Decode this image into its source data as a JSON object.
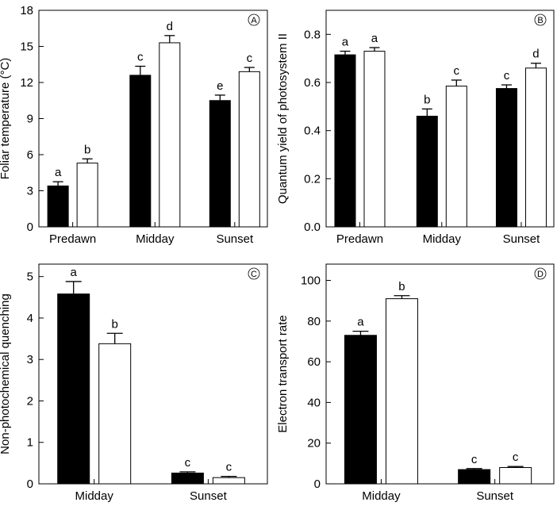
{
  "chart_data": [
    {
      "type": "bar",
      "panel": "A",
      "ylabel": "Foliar temperature (°C)",
      "xlabel": "",
      "categories": [
        "Predawn",
        "Midday",
        "Sunset"
      ],
      "ylim": [
        0,
        18
      ],
      "yticks": [
        0,
        3,
        6,
        9,
        12,
        15,
        18
      ],
      "series": [
        {
          "name": "filled",
          "color": "#000000",
          "values": [
            3.4,
            12.6,
            10.5
          ],
          "errors": [
            0.35,
            0.75,
            0.45
          ],
          "letters": [
            "a",
            "c",
            "e"
          ]
        },
        {
          "name": "open",
          "color": "#ffffff",
          "values": [
            5.3,
            15.3,
            12.9
          ],
          "errors": [
            0.35,
            0.6,
            0.35
          ],
          "letters": [
            "b",
            "d",
            "c"
          ]
        }
      ]
    },
    {
      "type": "bar",
      "panel": "B",
      "ylabel": "Quantum yield of photosystem II",
      "xlabel": "",
      "categories": [
        "Predawn",
        "Midday",
        "Sunset"
      ],
      "ylim": [
        0,
        0.9
      ],
      "yticks": [
        0.0,
        0.2,
        0.4,
        0.6,
        0.8
      ],
      "tick_decimals": 1,
      "series": [
        {
          "name": "filled",
          "color": "#000000",
          "values": [
            0.715,
            0.46,
            0.575
          ],
          "errors": [
            0.015,
            0.03,
            0.015
          ],
          "letters": [
            "a",
            "b",
            "c"
          ]
        },
        {
          "name": "open",
          "color": "#ffffff",
          "values": [
            0.73,
            0.585,
            0.66
          ],
          "errors": [
            0.015,
            0.025,
            0.02
          ],
          "letters": [
            "a",
            "c",
            "d"
          ]
        }
      ]
    },
    {
      "type": "bar",
      "panel": "C",
      "ylabel": "Non-photochemical quenching",
      "xlabel": "",
      "categories": [
        "Midday",
        "Sunset"
      ],
      "ylim": [
        0,
        5.3
      ],
      "yticks": [
        0,
        1,
        2,
        3,
        4,
        5
      ],
      "series": [
        {
          "name": "filled",
          "color": "#000000",
          "values": [
            4.58,
            0.26
          ],
          "errors": [
            0.3,
            0.03
          ],
          "letters": [
            "a",
            "c"
          ]
        },
        {
          "name": "open",
          "color": "#ffffff",
          "values": [
            3.38,
            0.15
          ],
          "errors": [
            0.25,
            0.03
          ],
          "letters": [
            "b",
            "c"
          ]
        }
      ]
    },
    {
      "type": "bar",
      "panel": "D",
      "ylabel": "Electron transport rate",
      "xlabel": "",
      "categories": [
        "Midday",
        "Sunset"
      ],
      "ylim": [
        0,
        108
      ],
      "yticks": [
        0,
        20,
        40,
        60,
        80,
        100
      ],
      "series": [
        {
          "name": "filled",
          "color": "#000000",
          "values": [
            73,
            7
          ],
          "errors": [
            2,
            0.5
          ],
          "letters": [
            "a",
            "c"
          ]
        },
        {
          "name": "open",
          "color": "#ffffff",
          "values": [
            91,
            8
          ],
          "errors": [
            1.5,
            0.5
          ],
          "letters": [
            "b",
            "c"
          ]
        }
      ]
    }
  ]
}
